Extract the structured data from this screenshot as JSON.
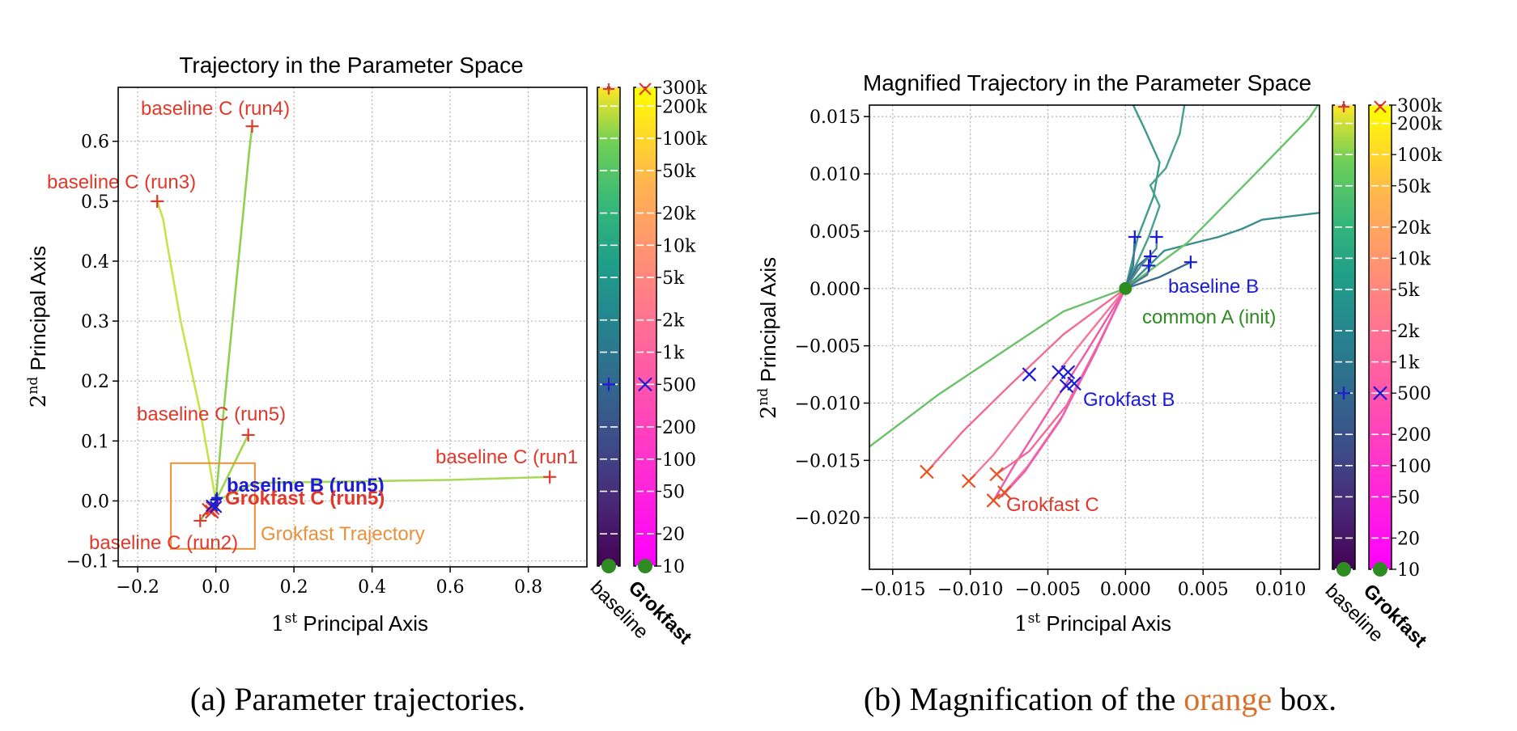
{
  "chart_data": [
    {
      "type": "line",
      "title": "Trajectory in the Parameter Space",
      "xlabel": {
        "main": "1",
        "sup": "st",
        "rest": " Principal Axis"
      },
      "ylabel": {
        "main": "2",
        "sup": "nd",
        "rest": " Principal Axis"
      },
      "xlim": [
        -0.25,
        0.95
      ],
      "ylim": [
        -0.11,
        0.69
      ],
      "xticks": [
        -0.2,
        0.0,
        0.2,
        0.4,
        0.6,
        0.8
      ],
      "xtick_labels": [
        "−0.2",
        "0.0",
        "0.2",
        "0.4",
        "0.6",
        "0.8"
      ],
      "yticks": [
        -0.1,
        0.0,
        0.1,
        0.2,
        0.3,
        0.4,
        0.5,
        0.6
      ],
      "ytick_labels": [
        "−0.1",
        "0.0",
        "0.1",
        "0.2",
        "0.3",
        "0.4",
        "0.5",
        "0.6"
      ],
      "grid": true,
      "series": [
        {
          "label": "baseline C (run4)",
          "kind": "baseline",
          "points": [
            [
              0.0,
              0.0
            ],
            [
              0.02,
              0.15
            ],
            [
              0.05,
              0.35
            ],
            [
              0.07,
              0.48
            ],
            [
              0.085,
              0.58
            ],
            [
              0.093,
              0.625
            ]
          ]
        },
        {
          "label": "baseline C (run3)",
          "kind": "baseline",
          "points": [
            [
              0.0,
              0.0
            ],
            [
              -0.04,
              0.15
            ],
            [
              -0.09,
              0.3
            ],
            [
              -0.125,
              0.43
            ],
            [
              -0.135,
              0.47
            ],
            [
              -0.15,
              0.5
            ]
          ]
        },
        {
          "label": "baseline C (run5)",
          "kind": "baseline",
          "points": [
            [
              0.0,
              0.0
            ],
            [
              0.03,
              0.04
            ],
            [
              0.06,
              0.08
            ],
            [
              0.083,
              0.11
            ]
          ]
        },
        {
          "label": "baseline C (run1",
          "kind": "baseline",
          "points": [
            [
              0.0,
              0.0
            ],
            [
              0.1,
              0.03
            ],
            [
              0.3,
              0.032
            ],
            [
              0.6,
              0.035
            ],
            [
              0.855,
              0.04
            ]
          ]
        },
        {
          "label": "baseline C (run2)",
          "kind": "baseline",
          "points": [
            [
              0.0,
              0.0
            ],
            [
              -0.02,
              -0.015
            ],
            [
              -0.04,
              -0.033
            ]
          ]
        }
      ],
      "annotations": [
        {
          "text": "baseline B (run5)",
          "color": "#1b1bd6"
        },
        {
          "text": "Grokfast C (run5)",
          "color": "#e1382b"
        },
        {
          "text": "Grokfast Trajectory",
          "color": "#e8913a"
        }
      ],
      "orange_box": {
        "x": [
          -0.115,
          0.1
        ],
        "y": [
          -0.08,
          0.063
        ]
      },
      "markers": {
        "baseline_C": [
          [
            0.093,
            0.625
          ],
          [
            -0.15,
            0.5
          ],
          [
            0.083,
            0.11
          ],
          [
            0.855,
            0.04
          ],
          [
            -0.04,
            -0.033
          ]
        ],
        "grokfast_C": [
          [
            -0.018,
            -0.015
          ],
          [
            -0.01,
            -0.018
          ],
          [
            -0.008,
            -0.012
          ]
        ],
        "baseline_B": [
          [
            0.0,
            0.002
          ],
          [
            0.003,
            0.005
          ]
        ],
        "grokfast_B": [
          [
            -0.01,
            -0.008
          ],
          [
            0.0,
            -0.01
          ]
        ]
      }
    },
    {
      "type": "line",
      "title": "Magnified Trajectory in the Parameter Space",
      "xlabel": {
        "main": "1",
        "sup": "st",
        "rest": " Principal Axis"
      },
      "ylabel": {
        "main": "2",
        "sup": "nd",
        "rest": " Principal Axis"
      },
      "xlim": [
        -0.0165,
        0.0125
      ],
      "ylim": [
        -0.0245,
        0.016
      ],
      "xticks": [
        -0.015,
        -0.01,
        -0.005,
        0.0,
        0.005,
        0.01
      ],
      "xtick_labels": [
        "−0.015",
        "−0.010",
        "−0.005",
        "0.000",
        "0.005",
        "0.010"
      ],
      "yticks": [
        -0.02,
        -0.015,
        -0.01,
        -0.005,
        0.0,
        0.005,
        0.01,
        0.015
      ],
      "ytick_labels": [
        "−0.020",
        "−0.015",
        "−0.010",
        "−0.005",
        "0.000",
        "0.005",
        "0.010",
        "0.015"
      ],
      "grid": true,
      "baseline_lines": [
        [
          [
            0.0,
            0.0
          ],
          [
            0.0008,
            0.0045
          ],
          [
            0.0018,
            0.008
          ],
          [
            0.0022,
            0.011
          ],
          [
            0.0012,
            0.014
          ],
          [
            0.0005,
            0.016
          ]
        ],
        [
          [
            0.0,
            0.0
          ],
          [
            0.0015,
            0.0045
          ],
          [
            0.0022,
            0.0072
          ],
          [
            0.0016,
            0.009
          ],
          [
            0.0026,
            0.0105
          ],
          [
            0.0035,
            0.0135
          ],
          [
            0.0038,
            0.016
          ]
        ],
        [
          [
            0.0,
            0.0
          ],
          [
            0.0025,
            0.0033
          ],
          [
            0.0045,
            0.004
          ],
          [
            0.006,
            0.0045
          ],
          [
            0.0075,
            0.0052
          ],
          [
            0.0088,
            0.006
          ],
          [
            0.0125,
            0.0066
          ]
        ],
        [
          [
            0.0,
            0.0
          ],
          [
            -0.004,
            -0.002
          ],
          [
            -0.008,
            -0.0056
          ],
          [
            -0.012,
            -0.0092
          ],
          [
            -0.0165,
            -0.0138
          ]
        ],
        [
          [
            0.0,
            0.0
          ],
          [
            0.004,
            0.004
          ],
          [
            0.008,
            0.0095
          ],
          [
            0.0118,
            0.0148
          ],
          [
            0.0125,
            0.0162
          ]
        ],
        [
          [
            0.0,
            0.0
          ],
          [
            0.0008,
            0.002
          ],
          [
            0.0015,
            0.0028
          ]
        ],
        [
          [
            0.0,
            0.0
          ],
          [
            0.0014,
            0.0012
          ],
          [
            0.0016,
            0.002
          ]
        ],
        [
          [
            0.0,
            0.0
          ],
          [
            0.0022,
            0.001
          ],
          [
            0.0042,
            0.0023
          ]
        ],
        [
          [
            0.0,
            0.0
          ],
          [
            0.001,
            0.002
          ],
          [
            0.002,
            0.0035
          ],
          [
            0.002,
            0.0045
          ]
        ],
        [
          [
            0.0,
            0.0
          ],
          [
            0.0005,
            0.002
          ],
          [
            0.0006,
            0.0045
          ]
        ]
      ],
      "grokfast_lines": [
        [
          [
            0.0,
            0.0
          ],
          [
            -0.004,
            -0.004
          ],
          [
            -0.0075,
            -0.0085
          ],
          [
            -0.0105,
            -0.0125
          ],
          [
            -0.0128,
            -0.016
          ]
        ],
        [
          [
            0.0,
            0.0
          ],
          [
            -0.003,
            -0.005
          ],
          [
            -0.0062,
            -0.0105
          ],
          [
            -0.0085,
            -0.0145
          ],
          [
            -0.0101,
            -0.0168
          ]
        ],
        [
          [
            0.0,
            0.0
          ],
          [
            -0.0025,
            -0.0055
          ],
          [
            -0.005,
            -0.0108
          ],
          [
            -0.0072,
            -0.0155
          ],
          [
            -0.0085,
            -0.0185
          ]
        ],
        [
          [
            0.0,
            0.0
          ],
          [
            -0.002,
            -0.0056
          ],
          [
            -0.004,
            -0.011
          ],
          [
            -0.0063,
            -0.0155
          ],
          [
            -0.0078,
            -0.0178
          ]
        ],
        [
          [
            0.0,
            0.0
          ],
          [
            -0.0018,
            -0.005
          ],
          [
            -0.0038,
            -0.0102
          ],
          [
            -0.0062,
            -0.0142
          ],
          [
            -0.0083,
            -0.0162
          ]
        ],
        [
          [
            0.0,
            0.0
          ],
          [
            -0.002,
            -0.0057
          ],
          [
            -0.0042,
            -0.0115
          ],
          [
            -0.0065,
            -0.016
          ],
          [
            -0.008,
            -0.0182
          ]
        ]
      ],
      "markers": {
        "baseline_B": [
          [
            0.0006,
            0.0045
          ],
          [
            0.002,
            0.0045
          ],
          [
            0.0016,
            0.0028
          ],
          [
            0.0015,
            0.002
          ],
          [
            0.0042,
            0.0023
          ]
        ],
        "grokfast_B": [
          [
            -0.0062,
            -0.0075
          ],
          [
            -0.0043,
            -0.0073
          ],
          [
            -0.0037,
            -0.0073
          ],
          [
            -0.0038,
            -0.0085
          ],
          [
            -0.0033,
            -0.0083
          ]
        ],
        "grokfast_C": [
          [
            -0.0128,
            -0.016
          ],
          [
            -0.0101,
            -0.0168
          ],
          [
            -0.0083,
            -0.0162
          ],
          [
            -0.0085,
            -0.0185
          ],
          [
            -0.0078,
            -0.0178
          ]
        ],
        "common_A": [
          [
            0.0,
            0.0
          ]
        ]
      },
      "labels": [
        {
          "text": "baseline B",
          "color": "#1b1bd6"
        },
        {
          "text": "common A (init)",
          "color": "#2e8b22"
        },
        {
          "text": "Grokfast B",
          "color": "#1b1bd6"
        },
        {
          "text": "Grokfast C",
          "color": "#e1382b"
        }
      ]
    }
  ],
  "colorbars": {
    "tick_labels": [
      "300k",
      "200k",
      "100k",
      "50k",
      "20k",
      "10k",
      "5k",
      "2k",
      "1k",
      "500",
      "200",
      "100",
      "50",
      "20",
      "10"
    ],
    "tick_values": [
      300000,
      200000,
      100000,
      50000,
      20000,
      10000,
      5000,
      2000,
      1000,
      500,
      200,
      100,
      50,
      20,
      10
    ],
    "range": [
      10,
      300000
    ],
    "scale": "log",
    "marker_value": 500,
    "baseline_label": "baseline",
    "grokfast_label": "Grokfast"
  },
  "captions": {
    "a": "(a) Parameter trajectories.",
    "b_before": "(b) Magnification of the ",
    "b_colored": "orange",
    "b_after": " box."
  },
  "colors": {
    "red": "#e1382b",
    "blue": "#1b1bd6",
    "green": "#2e8b22",
    "orange": "#e8913a",
    "caption_orange": "#d9702a"
  }
}
